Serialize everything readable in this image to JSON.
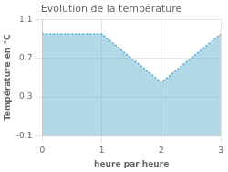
{
  "chart_data": {
    "type": "area",
    "title": "Evolution de la température",
    "xlabel": "heure par heure",
    "ylabel": "Température en °C",
    "x": [
      0,
      1,
      2,
      3
    ],
    "values": [
      0.95,
      0.95,
      0.45,
      0.95
    ],
    "xlim": [
      0,
      3
    ],
    "ylim": [
      -0.1,
      1.1
    ],
    "xticks": [
      0,
      1,
      2,
      3
    ],
    "yticks": [
      -0.1,
      0.3,
      0.7,
      1.1
    ],
    "color": "#55aacc",
    "line_style": "dotted",
    "grid": true
  }
}
